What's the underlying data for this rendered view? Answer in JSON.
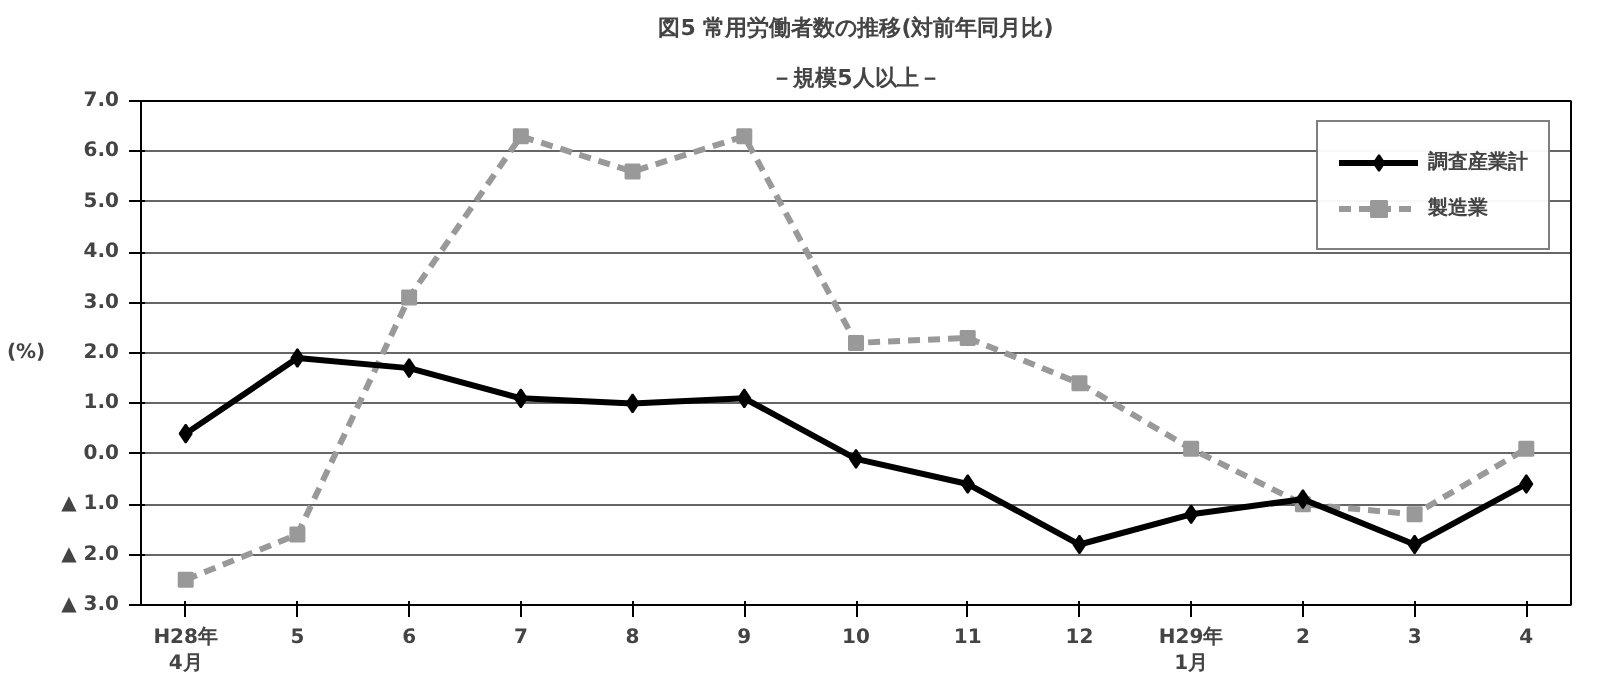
{
  "chart_data": {
    "type": "line",
    "title": "図5 常用労働者数の推移(対前年同月比)",
    "subtitle": "－規模5人以上－",
    "ylabel": "(%)",
    "categories": [
      "H28年\n4月",
      "5",
      "6",
      "7",
      "8",
      "9",
      "10",
      "11",
      "12",
      "H29年\n1月",
      "2",
      "3",
      "4"
    ],
    "ylim": [
      -3,
      7
    ],
    "yticks": [
      {
        "value": -3,
        "label": "▲ 3.0"
      },
      {
        "value": -2,
        "label": "▲ 2.0"
      },
      {
        "value": -1,
        "label": "▲ 1.0"
      },
      {
        "value": 0,
        "label": "0.0"
      },
      {
        "value": 1,
        "label": "1.0"
      },
      {
        "value": 2,
        "label": "2.0"
      },
      {
        "value": 3,
        "label": "3.0"
      },
      {
        "value": 4,
        "label": "4.0"
      },
      {
        "value": 5,
        "label": "5.0"
      },
      {
        "value": 6,
        "label": "6.0"
      },
      {
        "value": 7,
        "label": "7.0"
      }
    ],
    "grid": "y",
    "legend": "top right",
    "series": [
      {
        "name": "調査産業計",
        "color": "#000000",
        "marker": "diamond",
        "line_style": "solid",
        "values": [
          0.4,
          1.9,
          1.7,
          1.1,
          1.0,
          1.1,
          -0.1,
          -0.6,
          -1.8,
          -1.2,
          -0.9,
          -1.8,
          -0.6
        ]
      },
      {
        "name": "製造業",
        "color": "#999999",
        "marker": "square",
        "line_style": "dashed",
        "values": [
          -2.5,
          -1.6,
          3.1,
          6.3,
          5.6,
          6.3,
          2.2,
          2.3,
          1.4,
          0.1,
          -1.0,
          -1.2,
          0.1
        ]
      }
    ]
  }
}
